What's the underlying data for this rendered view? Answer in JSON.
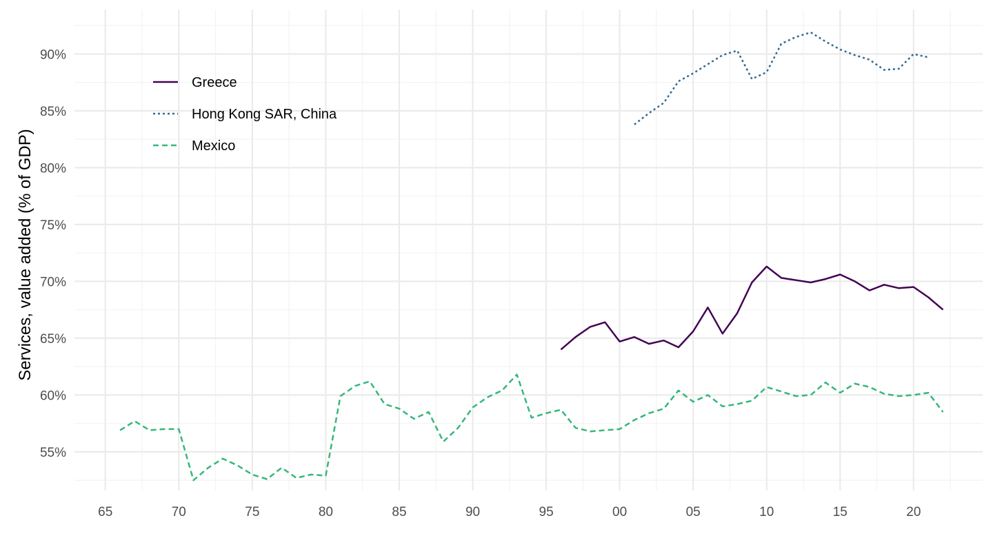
{
  "chart_data": {
    "type": "line",
    "ylabel": "Services, value added (% of GDP)",
    "xlabel": "",
    "xlim": [
      1962.9,
      2024.7
    ],
    "ylim": [
      51.6,
      93.9
    ],
    "x_ticks": [
      1965,
      1970,
      1975,
      1980,
      1985,
      1990,
      1995,
      2000,
      2005,
      2010,
      2015,
      2020
    ],
    "x_tick_labels": [
      "65",
      "70",
      "75",
      "80",
      "85",
      "90",
      "95",
      "00",
      "05",
      "10",
      "15",
      "20"
    ],
    "y_ticks": [
      55,
      60,
      65,
      70,
      75,
      80,
      85,
      90
    ],
    "y_tick_labels": [
      "55%",
      "60%",
      "65%",
      "70%",
      "75%",
      "80%",
      "85%",
      "90%"
    ],
    "grid": true,
    "legend_position": "top-left",
    "series": [
      {
        "name": "Greece",
        "color": "#440154",
        "dash": "solid",
        "x": [
          1996,
          1997,
          1998,
          1999,
          2000,
          2001,
          2002,
          2003,
          2004,
          2005,
          2006,
          2007,
          2008,
          2009,
          2010,
          2011,
          2012,
          2013,
          2014,
          2015,
          2016,
          2017,
          2018,
          2019,
          2020,
          2021,
          2022
        ],
        "values": [
          64.0,
          65.1,
          66.0,
          66.4,
          64.7,
          65.1,
          64.5,
          64.8,
          64.2,
          65.6,
          67.7,
          65.4,
          67.2,
          69.9,
          71.3,
          70.3,
          70.1,
          69.9,
          70.2,
          70.6,
          70.0,
          69.2,
          69.7,
          69.4,
          69.5,
          68.6,
          67.5
        ]
      },
      {
        "name": "Hong Kong SAR, China",
        "color": "#31688e",
        "dash": "dotted",
        "x": [
          2001,
          2002,
          2003,
          2004,
          2005,
          2006,
          2007,
          2008,
          2009,
          2010,
          2011,
          2012,
          2013,
          2014,
          2015,
          2016,
          2017,
          2018,
          2019,
          2020,
          2021
        ],
        "values": [
          83.8,
          84.8,
          85.7,
          87.6,
          88.3,
          89.1,
          89.9,
          90.3,
          87.8,
          88.4,
          90.9,
          91.5,
          91.9,
          91.1,
          90.4,
          89.9,
          89.5,
          88.6,
          88.7,
          90.0,
          89.7
        ]
      },
      {
        "name": "Mexico",
        "color": "#35b779",
        "dash": "dashed",
        "x": [
          1966,
          1967,
          1968,
          1969,
          1970,
          1971,
          1972,
          1973,
          1974,
          1975,
          1976,
          1977,
          1978,
          1979,
          1980,
          1981,
          1982,
          1983,
          1984,
          1985,
          1986,
          1987,
          1988,
          1989,
          1990,
          1991,
          1992,
          1993,
          1994,
          1995,
          1996,
          1997,
          1998,
          1999,
          2000,
          2001,
          2002,
          2003,
          2004,
          2005,
          2006,
          2007,
          2008,
          2009,
          2010,
          2011,
          2012,
          2013,
          2014,
          2015,
          2016,
          2017,
          2018,
          2019,
          2020,
          2021,
          2022
        ],
        "values": [
          56.9,
          57.7,
          56.9,
          57.0,
          57.0,
          52.5,
          53.6,
          54.4,
          53.8,
          53.0,
          52.6,
          53.6,
          52.7,
          53.0,
          52.9,
          59.9,
          60.8,
          61.2,
          59.2,
          58.8,
          57.9,
          58.5,
          55.9,
          57.1,
          58.9,
          59.8,
          60.4,
          61.8,
          58.0,
          58.4,
          58.7,
          57.1,
          56.8,
          56.9,
          57.0,
          57.8,
          58.4,
          58.8,
          60.4,
          59.4,
          60.0,
          59.0,
          59.2,
          59.5,
          60.7,
          60.3,
          59.9,
          60.0,
          61.1,
          60.2,
          61.0,
          60.7,
          60.1,
          59.9,
          60.0,
          60.2,
          58.5
        ]
      }
    ]
  }
}
